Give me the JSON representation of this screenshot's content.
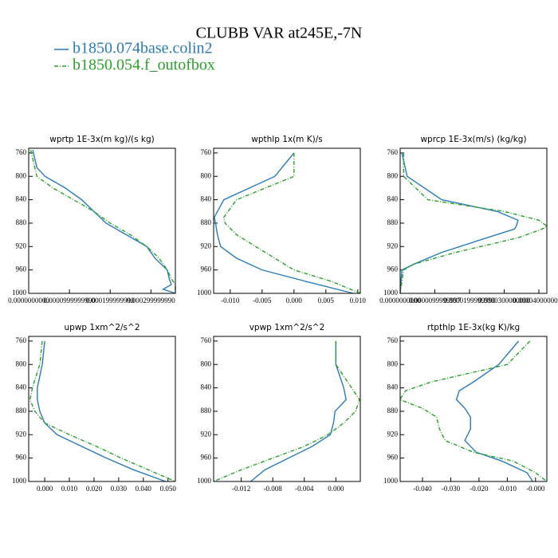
{
  "title": "CLUBB VAR at245E,-7N",
  "series": [
    {
      "name": "b1850.074base.colin2",
      "color": "#2b7bba",
      "dash": false
    },
    {
      "name": "b1850.054.f_outofbox",
      "color": "#2ca02c",
      "dash": true
    }
  ],
  "chart_data": [
    {
      "type": "line",
      "title": "wprtp  1E-3x(m kg)/(s kg)",
      "y": [
        755,
        770,
        785,
        800,
        820,
        840,
        860,
        880,
        900,
        920,
        940,
        960,
        975,
        985,
        993,
        1000
      ],
      "series": [
        {
          "values": [
            1e-05,
            1.5e-05,
            2e-05,
            4e-05,
            9e-05,
            0.00013,
            0.00016,
            0.00019,
            0.00024,
            0.00029,
            0.00031,
            0.00034,
            0.000345,
            0.00035,
            0.00033,
            0.00036
          ]
        },
        {
          "values": [
            5e-06,
            1e-05,
            1.5e-05,
            2e-05,
            6e-05,
            0.00011,
            0.00016,
            0.0002,
            0.00025,
            0.00029,
            0.00032,
            0.00034,
            0.00035,
            0.00036,
            0.00036,
            0.00036
          ]
        }
      ],
      "xlim": [
        0,
        0.00036
      ],
      "ylim": [
        752,
        1000
      ],
      "y_inverted": true,
      "xticks": [
        {
          "value": 0,
          "label": "0.0000000000"
        },
        {
          "value": 0.0001,
          "label": "0.0000999999990"
        },
        {
          "value": 0.0002,
          "label": "0.000199999990"
        },
        {
          "value": 0.0003,
          "label": "0.000299999990"
        }
      ],
      "yticks": [
        760,
        800,
        840,
        880,
        920,
        960,
        1000
      ]
    },
    {
      "type": "line",
      "title": "wpthlp  1x(m K)/s",
      "y": [
        760,
        800,
        840,
        870,
        880,
        900,
        920,
        940,
        960,
        980,
        1000
      ],
      "series": [
        {
          "values": [
            0.0,
            -0.003,
            -0.011,
            -0.0125,
            -0.0123,
            -0.012,
            -0.0115,
            -0.009,
            -0.005,
            0.002,
            0.0093
          ]
        },
        {
          "values": [
            0.0,
            0.0,
            -0.009,
            -0.011,
            -0.0108,
            -0.009,
            -0.006,
            -0.003,
            0.0,
            0.006,
            0.0104
          ]
        }
      ],
      "xlim": [
        -0.0126,
        0.0104
      ],
      "ylim": [
        752,
        1000
      ],
      "y_inverted": true,
      "xticks": [
        {
          "value": -0.01,
          "label": "-0.010"
        },
        {
          "value": -0.005,
          "label": "-0.005"
        },
        {
          "value": 0,
          "label": "0.000"
        },
        {
          "value": 0.005,
          "label": "0.005"
        },
        {
          "value": 0.01,
          "label": "0.010"
        }
      ],
      "yticks": [
        760,
        800,
        840,
        880,
        920,
        960,
        1000
      ]
    },
    {
      "type": "line",
      "title": "wprcp  1E-3x(m/s) (kg/kg)",
      "y": [
        760,
        800,
        840,
        860,
        875,
        885,
        890,
        905,
        930,
        950,
        960,
        1000
      ],
      "series": [
        {
          "values": [
            5e-07,
            2e-06,
            1.2e-05,
            2.8e-05,
            3.4e-05,
            3.35e-05,
            3.3e-05,
            2.5e-05,
            1.2e-05,
            4e-06,
            5e-07,
            0
          ]
        },
        {
          "values": [
            1e-06,
            1e-06,
            8e-06,
            3e-05,
            4e-05,
            4.23e-05,
            4.1e-05,
            3.4e-05,
            1.6e-05,
            4e-06,
            1e-06,
            0
          ]
        }
      ],
      "xlim": [
        0,
        4.23e-05
      ],
      "ylim": [
        752,
        1000
      ],
      "y_inverted": true,
      "xticks": [
        {
          "value": 0,
          "label": "0.0000000000"
        },
        {
          "value": 1e-05,
          "label": "0.0000099999997"
        },
        {
          "value": 2e-05,
          "label": "0.0000199999990"
        },
        {
          "value": 3e-05,
          "label": "0.0000300000000"
        },
        {
          "value": 4e-05,
          "label": "0.0000400000000"
        }
      ],
      "yticks": [
        760,
        800,
        840,
        880,
        920,
        960,
        1000
      ]
    },
    {
      "type": "line",
      "title": "upwp  1xm^2/s^2",
      "y": [
        760,
        800,
        840,
        860,
        880,
        900,
        920,
        940,
        960,
        980,
        1000
      ],
      "series": [
        {
          "values": [
            0.0,
            -0.001,
            -0.003,
            -0.003,
            -0.002,
            0.0,
            0.005,
            0.015,
            0.025,
            0.036,
            0.049
          ]
        },
        {
          "values": [
            -0.001,
            -0.002,
            -0.005,
            -0.006,
            -0.004,
            0.0,
            0.01,
            0.021,
            0.031,
            0.042,
            0.053
          ]
        }
      ],
      "xlim": [
        -0.0065,
        0.053
      ],
      "ylim": [
        752,
        1000
      ],
      "y_inverted": true,
      "xticks": [
        {
          "value": 0,
          "label": "0.000"
        },
        {
          "value": 0.01,
          "label": "0.010"
        },
        {
          "value": 0.02,
          "label": "0.020"
        },
        {
          "value": 0.03,
          "label": "0.030"
        },
        {
          "value": 0.04,
          "label": "0.040"
        },
        {
          "value": 0.05,
          "label": "0.050"
        }
      ],
      "yticks": [
        760,
        800,
        840,
        880,
        920,
        960,
        1000
      ]
    },
    {
      "type": "line",
      "title": "vpwp  1xm^2/s^2",
      "y": [
        760,
        800,
        820,
        840,
        860,
        880,
        900,
        920,
        940,
        960,
        980,
        1000
      ],
      "series": [
        {
          "values": [
            0.0,
            0.0,
            0.0005,
            0.001,
            0.0013,
            -0.0001,
            -0.0003,
            -0.0007,
            -0.003,
            -0.006,
            -0.009,
            -0.0108
          ]
        },
        {
          "values": [
            0.0,
            0.0,
            0.001,
            0.002,
            0.003,
            0.0025,
            0.001,
            -0.001,
            -0.004,
            -0.008,
            -0.012,
            -0.0155
          ]
        }
      ],
      "xlim": [
        -0.0155,
        0.0031
      ],
      "ylim": [
        752,
        1000
      ],
      "y_inverted": true,
      "xticks": [
        {
          "value": -0.012,
          "label": "-0.012"
        },
        {
          "value": -0.008,
          "label": "-0.008"
        },
        {
          "value": -0.004,
          "label": "-0.004"
        },
        {
          "value": 0,
          "label": "0.000"
        }
      ],
      "yticks": [
        760,
        800,
        840,
        880,
        920,
        960,
        1000
      ]
    },
    {
      "type": "line",
      "title": "rtpthlp  1E-3x(kg K)/kg",
      "y": [
        760,
        800,
        830,
        845,
        860,
        875,
        890,
        910,
        930,
        950,
        965,
        985,
        1000
      ],
      "series": [
        {
          "values": [
            -0.006,
            -0.013,
            -0.022,
            -0.027,
            -0.028,
            -0.025,
            -0.023,
            -0.023,
            -0.025,
            -0.021,
            -0.012,
            -0.003,
            -0.001
          ]
        },
        {
          "values": [
            -0.002,
            -0.01,
            -0.037,
            -0.046,
            -0.048,
            -0.04,
            -0.035,
            -0.034,
            -0.032,
            -0.022,
            -0.008,
            0.0,
            0.004
          ]
        }
      ],
      "xlim": [
        -0.0479,
        0.004
      ],
      "ylim": [
        752,
        1000
      ],
      "y_inverted": true,
      "xticks": [
        {
          "value": -0.04,
          "label": "-0.040"
        },
        {
          "value": -0.03,
          "label": "-0.030"
        },
        {
          "value": -0.02,
          "label": "-0.020"
        },
        {
          "value": -0.01,
          "label": "-0.010"
        },
        {
          "value": 0,
          "label": "-0.000"
        }
      ],
      "yticks": [
        760,
        800,
        840,
        880,
        920,
        960,
        1000
      ]
    }
  ]
}
